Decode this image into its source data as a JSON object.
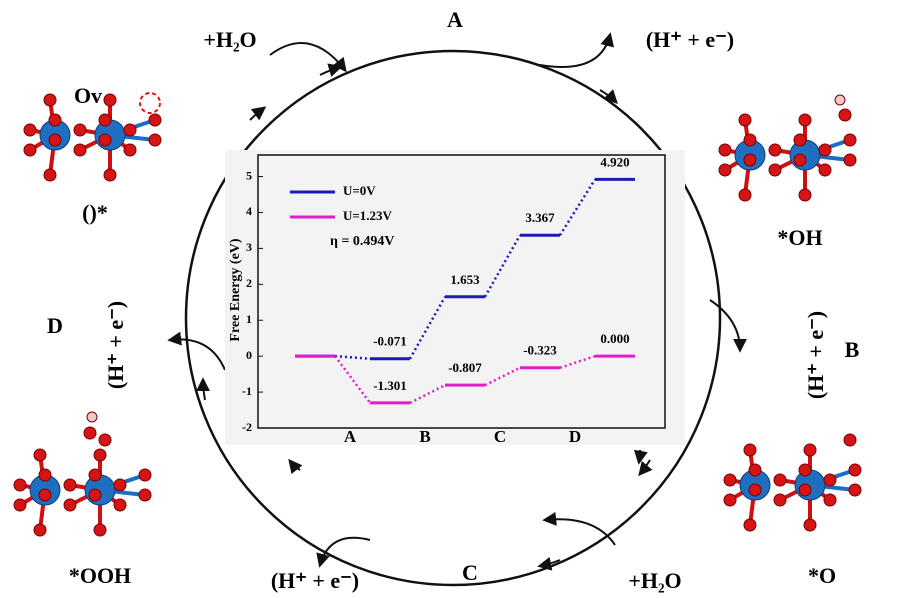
{
  "labels": {
    "top_step": "A",
    "top_reactant": "+H₂O",
    "top_product": "(H⁺ + e⁻)",
    "vacancy": "Ov",
    "empty_site": "()*",
    "oh": "*OH",
    "left_step": "D",
    "left_product": "(H⁺ + e⁻)",
    "right_step": "B",
    "right_product": "(H⁺ + e⁻)",
    "ooh": "*OOH",
    "bottom_product": "(H⁺ + e⁻)",
    "bottom_step": "C",
    "bottom_reactant": "+H₂O",
    "o": "*O"
  },
  "chart_data": {
    "type": "step",
    "ylabel": "Free Energy (eV)",
    "annotation": "η = 0.494V",
    "categories": [
      null,
      "A",
      "B",
      "C",
      "D"
    ],
    "series": [
      {
        "name": "U=0V",
        "color": "#1c1cb4",
        "values": [
          0,
          -0.071,
          1.653,
          3.367,
          4.92
        ],
        "value_labels": [
          null,
          "-0.071",
          "1.653",
          "3.367",
          "4.920"
        ]
      },
      {
        "name": "U=1.23V",
        "color": "#e01fc8",
        "values": [
          0,
          -1.301,
          -0.807,
          -0.323,
          0
        ],
        "value_labels": [
          null,
          "-1.301",
          "-0.807",
          "-0.323",
          "0.000"
        ]
      }
    ],
    "ylim": [
      -2,
      5.6
    ],
    "yticks": [
      -2,
      -1,
      0,
      1,
      2,
      3,
      4,
      5
    ],
    "legend": "upper left"
  }
}
